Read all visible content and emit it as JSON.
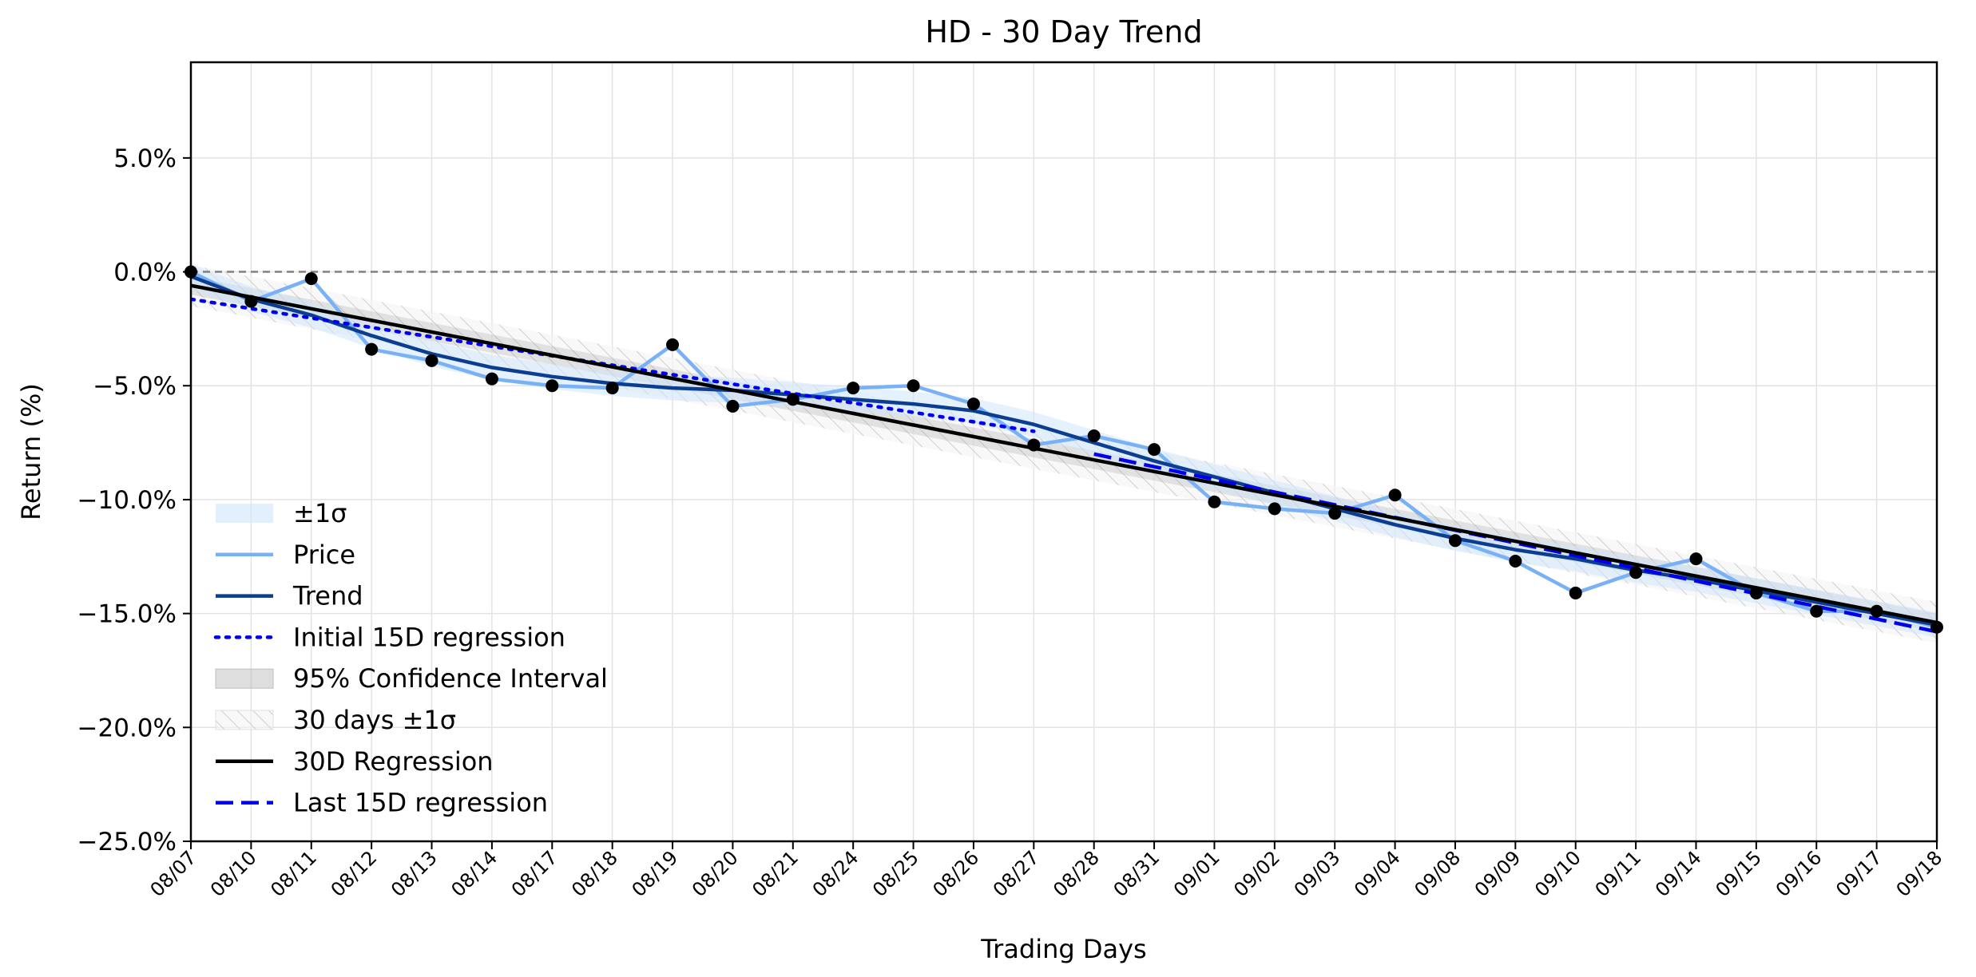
{
  "chart_data": {
    "type": "line",
    "title": "HD - 30 Day Trend",
    "xlabel": "Trading Days",
    "ylabel": "Return (%)",
    "ylim": [
      -25,
      9.2
    ],
    "yticks": [
      5,
      0,
      -5,
      -10,
      -15,
      -20,
      -25
    ],
    "ytick_labels": [
      "5.0%",
      "0.0%",
      "−5.0%",
      "−10.0%",
      "−15.0%",
      "−20.0%",
      "−25.0%"
    ],
    "grid": true,
    "legend_position": "lower-left",
    "x": [
      "08/07",
      "08/10",
      "08/11",
      "08/12",
      "08/13",
      "08/14",
      "08/17",
      "08/18",
      "08/19",
      "08/20",
      "08/21",
      "08/24",
      "08/25",
      "08/26",
      "08/27",
      "08/28",
      "08/31",
      "09/01",
      "09/02",
      "09/03",
      "09/04",
      "09/08",
      "09/09",
      "09/10",
      "09/11",
      "09/14",
      "09/15",
      "09/16",
      "09/17",
      "09/18"
    ],
    "series": [
      {
        "name": "Price",
        "color": "#78b1f5",
        "values": [
          0.0,
          -1.3,
          -0.3,
          -3.4,
          -3.9,
          -4.7,
          -5.0,
          -5.1,
          -3.2,
          -5.9,
          -5.6,
          -5.1,
          -5.0,
          -5.8,
          -7.6,
          -7.2,
          -7.8,
          -10.1,
          -10.4,
          -10.6,
          -9.8,
          -11.8,
          -12.7,
          -14.1,
          -13.2,
          -12.6,
          -14.1,
          -14.9,
          -14.9,
          -15.6
        ]
      },
      {
        "name": "Trend",
        "color": "#0b3d91",
        "values": [
          -0.2,
          -1.2,
          -1.9,
          -2.8,
          -3.6,
          -4.2,
          -4.6,
          -4.9,
          -5.1,
          -5.2,
          -5.4,
          -5.6,
          -5.8,
          -6.1,
          -6.7,
          -7.5,
          -8.3,
          -9.0,
          -9.7,
          -10.4,
          -11.1,
          -11.7,
          -12.2,
          -12.6,
          -13.1,
          -13.5,
          -14.0,
          -14.5,
          -15.0,
          -15.5
        ]
      },
      {
        "name": "Initial 15D regression",
        "color": "#0000ee",
        "start": -1.2,
        "end": -7.0,
        "x_range": [
          "08/07",
          "08/27"
        ]
      },
      {
        "name": "Last 15D regression",
        "color": "#0000ee",
        "start": -8.0,
        "end": -15.8,
        "x_range": [
          "08/28",
          "09/18"
        ]
      },
      {
        "name": "30D Regression",
        "color": "#000000",
        "start": -0.6,
        "end": -15.4
      }
    ],
    "bands": {
      "sigma_halfwidth": 0.55,
      "ci_halfwidth": 0.4,
      "thirty_day_sigma_halfwidth": 0.9
    },
    "reference_line": {
      "y": 0.0,
      "color": "#808080"
    },
    "legend": [
      {
        "label": "±1σ",
        "kind": "band-light"
      },
      {
        "label": "Price",
        "kind": "line-light"
      },
      {
        "label": "Trend",
        "kind": "line-dark"
      },
      {
        "label": "Initial 15D regression",
        "kind": "dotted"
      },
      {
        "label": "95% Confidence Interval",
        "kind": "band-grey"
      },
      {
        "label": "30 days ±1σ",
        "kind": "band-hatch"
      },
      {
        "label": "30D Regression",
        "kind": "line-black"
      },
      {
        "label": "Last 15D regression",
        "kind": "dashed"
      }
    ]
  }
}
